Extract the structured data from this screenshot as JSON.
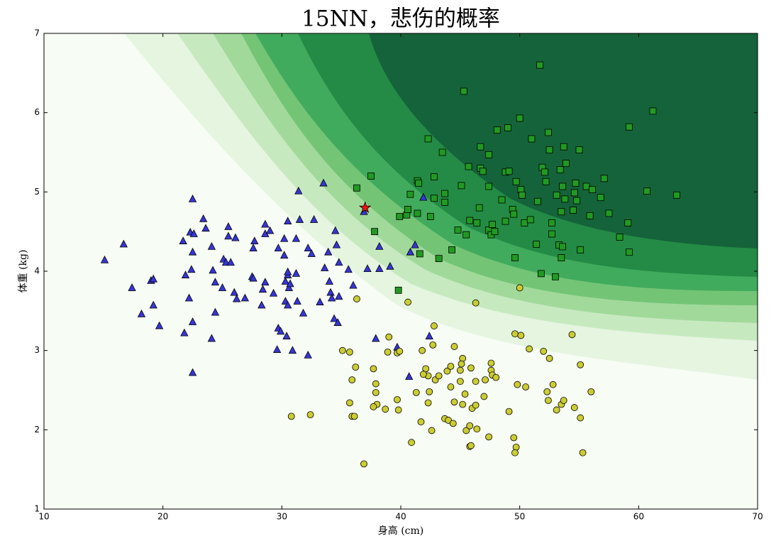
{
  "chart_data": {
    "type": "scatter",
    "title": "15NN，悲伤的概率",
    "xlabel": "身高 (cm)",
    "ylabel": "体重 (kg)",
    "xlim": [
      10,
      70
    ],
    "ylim": [
      1,
      7
    ],
    "xticks": [
      10,
      20,
      30,
      40,
      50,
      60,
      70
    ],
    "yticks": [
      1,
      2,
      3,
      4,
      5,
      6,
      7
    ],
    "series": [
      {
        "color": "#3636d6",
        "marker": "triangle",
        "x": [
          15.1,
          16.7,
          17.4,
          18.2,
          19.0,
          19.2,
          19.2,
          19.7,
          21.8,
          21.9,
          21.7,
          22.3,
          22.5,
          22.6,
          22.5,
          22.4,
          22.2,
          22.5,
          22.5,
          23.4,
          23.6,
          24.1,
          24.2,
          24.4,
          24.4,
          24.1,
          25.0,
          25.1,
          25.3,
          25.5,
          25.5,
          25.7,
          26.0,
          26.1,
          26.2,
          26.9,
          27.5,
          27.6,
          27.7,
          27.6,
          28.3,
          28.4,
          28.6,
          28.6,
          28.6,
          29.0,
          29.3,
          29.7,
          29.6,
          29.7,
          29.9,
          30.2,
          30.2,
          30.3,
          30.3,
          30.4,
          30.5,
          30.5,
          30.5,
          30.5,
          30.6,
          30.7,
          30.9,
          31.2,
          31.2,
          31.3,
          31.4,
          31.5,
          31.8,
          32.2,
          32.2,
          32.5,
          32.7,
          33.2,
          33.5,
          33.6,
          33.9,
          34.0,
          34.1,
          34.2,
          34.4,
          34.6,
          34.5,
          34.7,
          34.8,
          34.8,
          35.6,
          36.0,
          36.9,
          37.2,
          38.2,
          38.2,
          37.9,
          39.1,
          39.7,
          40.7,
          40.8,
          41.2,
          41.9,
          42.4
        ],
        "y": [
          4.14,
          4.34,
          3.79,
          3.46,
          3.88,
          3.9,
          3.57,
          3.31,
          3.22,
          3.95,
          4.38,
          4.49,
          4.91,
          4.47,
          4.24,
          4.02,
          3.66,
          3.36,
          2.72,
          4.66,
          4.54,
          4.31,
          4.01,
          3.86,
          3.48,
          3.15,
          3.79,
          4.15,
          4.11,
          4.56,
          4.44,
          4.11,
          3.73,
          4.42,
          3.65,
          3.66,
          3.93,
          3.91,
          4.38,
          4.29,
          3.57,
          3.77,
          4.59,
          3.86,
          4.47,
          4.51,
          3.72,
          4.29,
          3.01,
          3.28,
          3.24,
          4.2,
          4.41,
          3.62,
          3.87,
          3.18,
          3.95,
          3.99,
          4.63,
          3.57,
          3.79,
          3.84,
          3.0,
          4.41,
          3.97,
          3.62,
          5.01,
          4.65,
          3.47,
          4.29,
          2.94,
          4.22,
          4.65,
          3.61,
          5.11,
          4.04,
          4.24,
          3.87,
          3.73,
          3.66,
          3.4,
          4.33,
          4.51,
          3.35,
          3.68,
          4.11,
          4.02,
          3.82,
          4.75,
          4.03,
          4.03,
          4.31,
          3.15,
          4.06,
          3.04,
          2.67,
          4.24,
          4.33,
          4.93,
          3.18
        ]
      },
      {
        "color": "#229922",
        "marker": "square",
        "x": [
          36.3,
          37.5,
          37.8,
          39.8,
          39.9,
          40.5,
          40.6,
          40.8,
          41.4,
          41.5,
          41.4,
          41.6,
          42.3,
          42.5,
          42.8,
          42.8,
          43.2,
          43.5,
          43.7,
          43.7,
          44.3,
          44.8,
          45.1,
          45.3,
          45.5,
          45.7,
          45.8,
          46.4,
          46.6,
          46.7,
          46.7,
          46.9,
          47.4,
          47.4,
          47.4,
          47.6,
          47.7,
          47.9,
          48.1,
          48.5,
          48.8,
          49.0,
          49.1,
          48.8,
          49.4,
          49.5,
          49.6,
          49.7,
          50.0,
          50.1,
          50.2,
          50.4,
          50.9,
          51.0,
          51.5,
          51.4,
          51.7,
          51.8,
          51.9,
          52.1,
          52.2,
          52.4,
          52.5,
          52.7,
          52.7,
          53.0,
          53.1,
          53.3,
          53.4,
          53.5,
          53.5,
          53.6,
          53.6,
          53.7,
          53.8,
          53.9,
          54.5,
          54.6,
          54.7,
          54.8,
          55.0,
          55.1,
          55.6,
          56.1,
          55.9,
          56.8,
          57.1,
          57.5,
          58.4,
          59.1,
          59.2,
          59.2,
          60.7,
          61.2,
          63.2
        ],
        "y": [
          5.05,
          5.2,
          4.5,
          3.76,
          4.69,
          4.71,
          4.78,
          4.97,
          5.14,
          5.11,
          4.73,
          4.22,
          5.67,
          4.69,
          5.19,
          4.92,
          4.16,
          5.5,
          4.98,
          4.87,
          4.27,
          4.52,
          5.08,
          6.27,
          4.46,
          5.32,
          4.64,
          4.61,
          4.8,
          5.57,
          5.3,
          5.26,
          5.07,
          5.47,
          4.52,
          4.46,
          4.59,
          4.5,
          5.78,
          4.9,
          5.25,
          5.81,
          5.26,
          4.63,
          4.78,
          4.72,
          4.17,
          5.13,
          5.93,
          5.03,
          4.96,
          4.61,
          4.65,
          5.67,
          4.88,
          4.34,
          6.6,
          3.97,
          5.31,
          5.25,
          5.13,
          5.75,
          5.53,
          4.47,
          4.61,
          3.93,
          4.96,
          4.33,
          5.28,
          4.75,
          4.17,
          4.31,
          5.07,
          5.57,
          4.91,
          5.36,
          4.77,
          4.99,
          5.11,
          4.89,
          5.53,
          4.27,
          5.07,
          5.03,
          4.7,
          4.93,
          5.17,
          4.73,
          4.43,
          4.61,
          4.24,
          5.82,
          5.01,
          6.02,
          4.96
        ]
      },
      {
        "color": "#cccc33",
        "marker": "circle",
        "x": [
          36.3,
          40.6,
          46.3,
          50.0,
          42.8,
          41.8,
          42.7,
          44.5,
          49.6,
          50.1,
          54.4,
          35.1,
          35.7,
          35.9,
          36.2,
          37.7,
          39.0,
          38.9,
          39.7,
          39.9,
          37.9,
          37.9,
          38.0,
          37.7,
          38.7,
          39.7,
          39.8,
          35.7,
          35.9,
          36.1,
          30.8,
          32.4,
          36.9,
          40.9,
          41.3,
          42.1,
          42.3,
          41.9,
          42.4,
          42.9,
          43.2,
          42.3,
          41.7,
          42.6,
          43.7,
          44.0,
          44.4,
          43.9,
          44.2,
          44.2,
          45.0,
          45.2,
          45.1,
          45.0,
          44.5,
          45.2,
          45.4,
          45.9,
          46.3,
          46.0,
          46.3,
          45.5,
          45.8,
          46.4,
          45.8,
          45.9,
          47.4,
          47.0,
          47.1,
          47.6,
          47.6,
          47.7,
          48.0,
          49.1,
          49.5,
          49.7,
          49.6,
          49.8,
          50.5,
          50.8,
          52.0,
          52.5,
          52.3,
          52.4,
          52.8,
          53.1,
          53.5,
          53.7,
          54.6,
          55.1,
          55.1,
          56.0,
          55.3
        ],
        "y": [
          3.65,
          3.61,
          3.6,
          3.79,
          3.31,
          3.0,
          3.07,
          3.05,
          3.21,
          3.19,
          3.2,
          3.0,
          2.98,
          2.63,
          2.79,
          2.77,
          3.17,
          2.98,
          2.97,
          2.99,
          2.58,
          2.47,
          2.32,
          2.29,
          2.26,
          2.38,
          2.25,
          2.34,
          2.17,
          2.17,
          2.17,
          2.19,
          1.57,
          1.84,
          2.47,
          2.77,
          2.68,
          2.7,
          2.48,
          2.63,
          2.68,
          2.34,
          2.1,
          1.99,
          2.14,
          2.12,
          2.08,
          2.74,
          2.8,
          2.54,
          2.75,
          2.9,
          2.83,
          2.61,
          2.35,
          2.32,
          2.45,
          2.78,
          2.61,
          2.27,
          2.31,
          1.99,
          2.05,
          2.01,
          1.79,
          1.8,
          1.91,
          2.42,
          2.63,
          2.84,
          2.75,
          2.69,
          2.66,
          2.23,
          1.9,
          1.78,
          1.71,
          2.57,
          2.54,
          3.02,
          2.99,
          2.9,
          2.48,
          2.37,
          2.57,
          2.25,
          2.32,
          2.37,
          2.28,
          2.82,
          2.15,
          2.48,
          1.71
        ]
      },
      {
        "color": "#ee1111",
        "marker": "star",
        "x": [
          37
        ],
        "y": [
          4.8
        ]
      }
    ]
  }
}
